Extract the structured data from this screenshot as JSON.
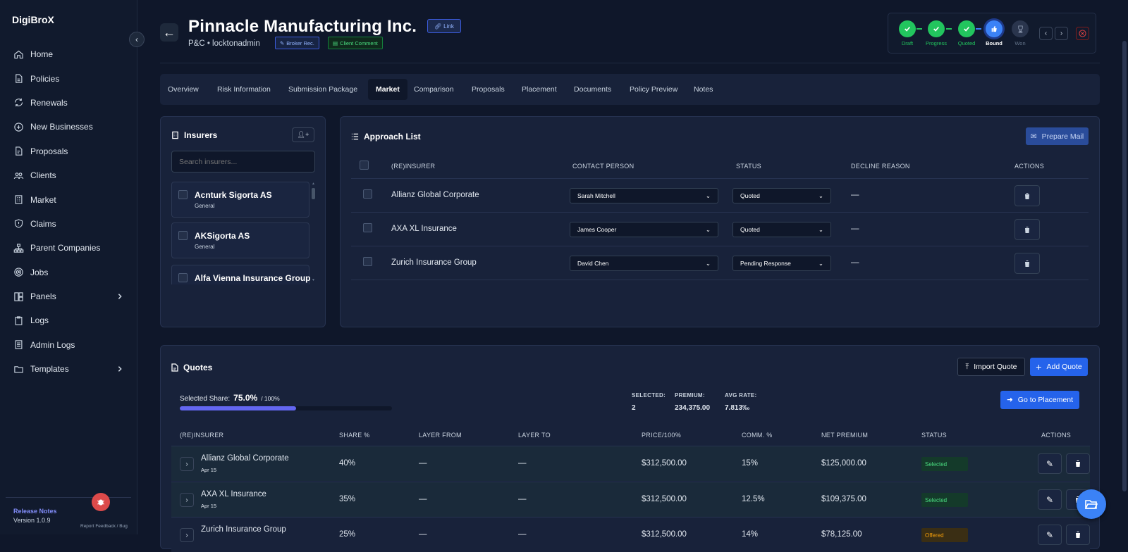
{
  "app": {
    "name": "DigiBroX",
    "release_notes": "Release Notes",
    "version": "Version 1.0.9",
    "report": "Report Feedback / Bug"
  },
  "nav": [
    {
      "label": "Home",
      "icon": "home-icon"
    },
    {
      "label": "Policies",
      "icon": "file-icon"
    },
    {
      "label": "Renewals",
      "icon": "refresh-icon"
    },
    {
      "label": "New Businesses",
      "icon": "plus-circle-icon"
    },
    {
      "label": "Proposals",
      "icon": "document-icon"
    },
    {
      "label": "Clients",
      "icon": "users-icon"
    },
    {
      "label": "Market",
      "icon": "building-icon"
    },
    {
      "label": "Claims",
      "icon": "shield-icon"
    },
    {
      "label": "Parent Companies",
      "icon": "sitemap-icon"
    },
    {
      "label": "Jobs",
      "icon": "target-icon"
    },
    {
      "label": "Panels",
      "icon": "layout-icon"
    },
    {
      "label": "Logs",
      "icon": "clipboard-icon"
    },
    {
      "label": "Admin Logs",
      "icon": "list-icon"
    },
    {
      "label": "Templates",
      "icon": "folder-icon"
    }
  ],
  "header": {
    "title": "Pinnacle Manufacturing Inc.",
    "link": "Link",
    "subtitle": "P&C • locktonadmin",
    "broker_rec": "Broker Rec.",
    "client_comment": "Client Comment"
  },
  "progress": {
    "steps": [
      {
        "label": "Draft",
        "state": "done"
      },
      {
        "label": "Progress",
        "state": "done"
      },
      {
        "label": "Quoted",
        "state": "done"
      },
      {
        "label": "Bound",
        "state": "current"
      },
      {
        "label": "Won",
        "state": "pending"
      }
    ]
  },
  "tabs": [
    "Overview",
    "Risk Information",
    "Submission Package",
    "Market",
    "Comparison",
    "Proposals",
    "Placement",
    "Documents",
    "Policy Preview",
    "Notes"
  ],
  "active_tab": "Market",
  "insurers": {
    "title": "Insurers",
    "search_placeholder": "Search insurers...",
    "items": [
      {
        "name": "Acnturk Sigorta AS",
        "sub": "General"
      },
      {
        "name": "AKSigorta AS",
        "sub": "General"
      },
      {
        "name": "Alfa Vienna Insurance Group",
        "sub": ""
      }
    ]
  },
  "approach": {
    "title": "Approach List",
    "prepare_mail": "Prepare Mail",
    "headers": {
      "insurer": "(RE)INSURER",
      "contact": "CONTACT PERSON",
      "status": "STATUS",
      "decline": "DECLINE REASON",
      "actions": "ACTIONS"
    },
    "rows": [
      {
        "insurer": "Allianz Global Corporate",
        "contact": "Sarah Mitchell",
        "status": "Quoted",
        "decline": "—"
      },
      {
        "insurer": "AXA XL Insurance",
        "contact": "James Cooper",
        "status": "Quoted",
        "decline": "—"
      },
      {
        "insurer": "Zurich Insurance Group",
        "contact": "David Chen",
        "status": "Pending Response",
        "decline": "—"
      }
    ]
  },
  "quotes": {
    "title": "Quotes",
    "import": "Import Quote",
    "add": "Add Quote",
    "go_placement": "Go to Placement",
    "selected_share_label": "Selected Share:",
    "selected_share": "75.0%",
    "share_total": "/ 100%",
    "share_fraction": 0.75,
    "stats": [
      {
        "label": "SELECTED:",
        "value": "2"
      },
      {
        "label": "PREMIUM:",
        "value": "234,375.00"
      },
      {
        "label": "AVG RATE:",
        "value": "7.813‰"
      }
    ],
    "headers": {
      "insurer": "(RE)INSURER",
      "share": "SHARE %",
      "layer_from": "LAYER FROM",
      "layer_to": "LAYER TO",
      "price": "PRICE/100%",
      "comm": "COMM. %",
      "net": "NET PREMIUM",
      "status": "STATUS",
      "actions": "ACTIONS"
    },
    "rows": [
      {
        "insurer": "Allianz Global Corporate",
        "date": "Apr 15",
        "share": "40%",
        "from": "—",
        "to": "—",
        "price": "$312,500.00",
        "comm": "15%",
        "net": "$125,000.00",
        "status": "Selected"
      },
      {
        "insurer": "AXA XL Insurance",
        "date": "Apr 15",
        "share": "35%",
        "from": "—",
        "to": "—",
        "price": "$312,500.00",
        "comm": "12.5%",
        "net": "$109,375.00",
        "status": "Selected"
      },
      {
        "insurer": "Zurich Insurance Group",
        "date": "",
        "share": "25%",
        "from": "—",
        "to": "—",
        "price": "$312,500.00",
        "comm": "14%",
        "net": "$78,125.00",
        "status": "Offered"
      }
    ]
  },
  "colors": {
    "accent": "#2563eb",
    "success": "#22c55e",
    "progress_bar": "#6366f1",
    "selected_text": "#4ade80",
    "offered_text": "#f59e0b"
  }
}
